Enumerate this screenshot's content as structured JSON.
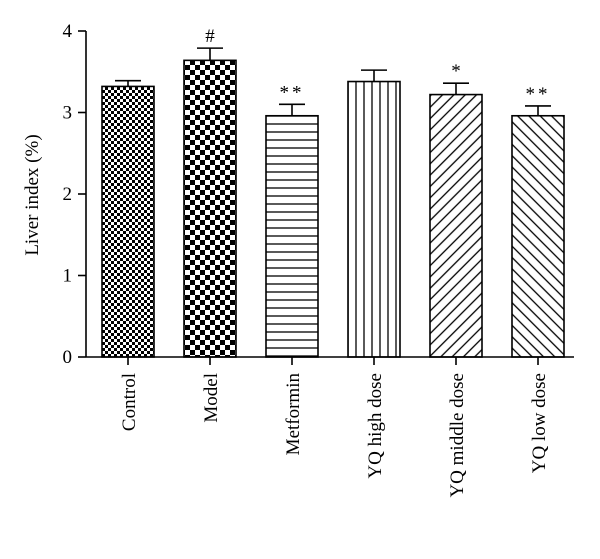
{
  "chart_data": {
    "type": "bar",
    "ylabel": "Liver index (%)",
    "xlabel": "",
    "ylim": [
      0,
      4
    ],
    "yticks": [
      0,
      1,
      2,
      3,
      4
    ],
    "grid": false,
    "categories": [
      "Control",
      "Model",
      "Metformin",
      "YQ high dose",
      "YQ middle dose",
      "YQ low dose"
    ],
    "values": [
      3.32,
      3.64,
      2.96,
      3.38,
      3.22,
      2.96
    ],
    "errors": [
      0.07,
      0.15,
      0.14,
      0.14,
      0.14,
      0.12
    ],
    "significance": [
      "",
      "#",
      "**",
      "",
      "*",
      "**"
    ],
    "patterns": [
      "small-checker",
      "large-checker",
      "horizontal-lines",
      "vertical-lines",
      "diagonal-lines",
      "diagonal-lines-reverse"
    ]
  }
}
